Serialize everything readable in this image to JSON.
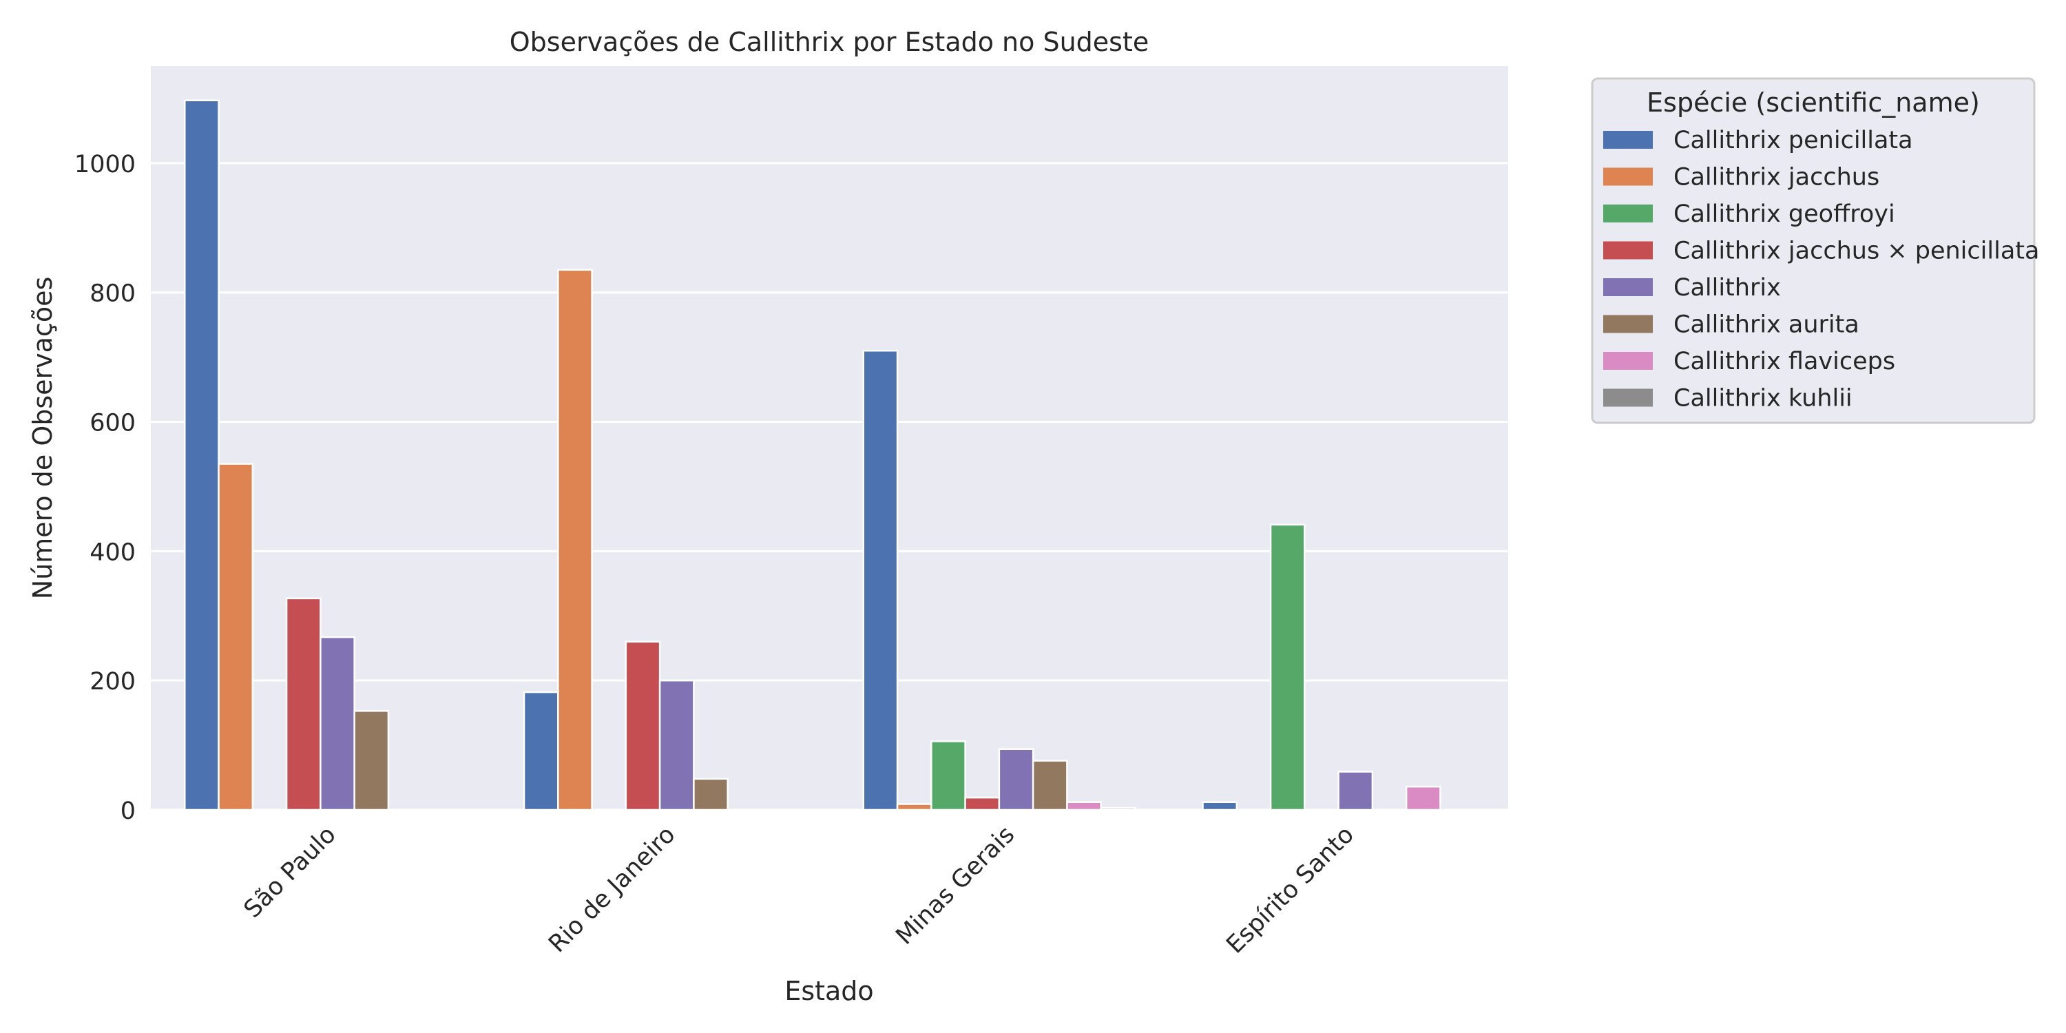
{
  "chart_data": {
    "type": "bar",
    "title": "Observações de Callithrix por Estado no Sudeste",
    "xlabel": "Estado",
    "ylabel": "Número de Observações",
    "ylim": [
      0,
      1150
    ],
    "yticks": [
      0,
      200,
      400,
      600,
      800,
      1000
    ],
    "grid": true,
    "legend_title": "Espécie (scientific_name)",
    "legend_position": "outside-top-right",
    "categories": [
      "São Paulo",
      "Rio de Janeiro",
      "Minas Gerais",
      "Espírito Santo"
    ],
    "series": [
      {
        "name": "Callithrix penicillata",
        "color": "#4c72b0",
        "values": [
          1097,
          182,
          710,
          12
        ]
      },
      {
        "name": "Callithrix jacchus",
        "color": "#dd8452",
        "values": [
          535,
          835,
          9,
          0
        ]
      },
      {
        "name": "Callithrix geoffroyi",
        "color": "#55a868",
        "values": [
          0,
          0,
          106,
          441
        ]
      },
      {
        "name": "Callithrix jacchus × penicillata",
        "color": "#c44e52",
        "values": [
          327,
          260,
          19,
          0
        ]
      },
      {
        "name": "Callithrix",
        "color": "#8172b3",
        "values": [
          267,
          200,
          94,
          59
        ]
      },
      {
        "name": "Callithrix aurita",
        "color": "#937860",
        "values": [
          153,
          48,
          76,
          0
        ]
      },
      {
        "name": "Callithrix flaviceps",
        "color": "#da8bc3",
        "values": [
          0,
          0,
          12,
          36
        ]
      },
      {
        "name": "Callithrix kuhlii",
        "color": "#8c8c8c",
        "values": [
          0,
          0,
          3,
          0
        ]
      }
    ]
  }
}
